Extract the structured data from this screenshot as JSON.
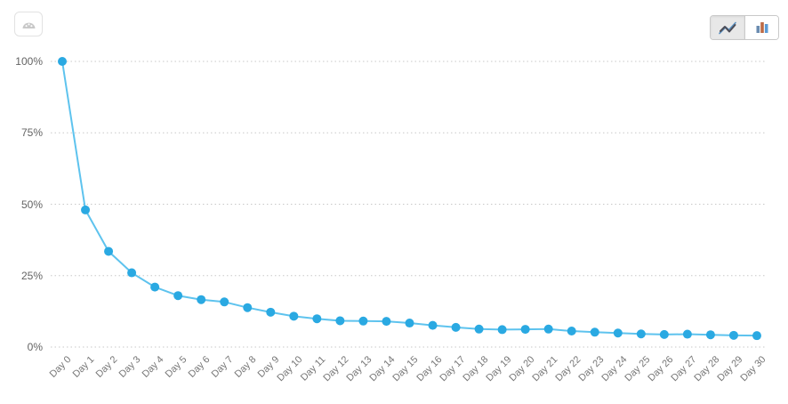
{
  "toolbar": {
    "report_button": {
      "icon": "gauge-icon"
    },
    "chart_type_toggle": {
      "options": [
        {
          "name": "line-chart",
          "icon": "line-chart-icon",
          "selected": true
        },
        {
          "name": "bar-chart",
          "icon": "bar-chart-icon",
          "selected": false
        }
      ]
    }
  },
  "chart_data": {
    "type": "line",
    "categories": [
      "Day 0",
      "Day 1",
      "Day 2",
      "Day 3",
      "Day 4",
      "Day 5",
      "Day 6",
      "Day 7",
      "Day 8",
      "Day 9",
      "Day 10",
      "Day 11",
      "Day 12",
      "Day 13",
      "Day 14",
      "Day 15",
      "Day 16",
      "Day 17",
      "Day 18",
      "Day 19",
      "Day 20",
      "Day 21",
      "Day 22",
      "Day 23",
      "Day 24",
      "Day 25",
      "Day 26",
      "Day 27",
      "Day 28",
      "Day 29",
      "Day 30"
    ],
    "values": [
      100,
      48,
      33.5,
      26,
      21,
      18,
      16.6,
      15.8,
      13.8,
      12.2,
      10.8,
      9.9,
      9.2,
      9.1,
      9,
      8.4,
      7.6,
      6.9,
      6.3,
      6.1,
      6.2,
      6.3,
      5.6,
      5.2,
      4.9,
      4.6,
      4.4,
      4.5,
      4.3,
      4.1,
      4
    ],
    "unit": "%",
    "ylim": [
      0,
      100
    ],
    "yticks": [
      0,
      25,
      50,
      75,
      100
    ],
    "ytick_labels": [
      "0%",
      "25%",
      "50%",
      "75%",
      "100%"
    ],
    "grid": "horizontal-dotted",
    "legend": "none",
    "line_color": "#5ec3ee",
    "point_color": "#2aa9e2",
    "grid_color": "#c8c8c8"
  }
}
